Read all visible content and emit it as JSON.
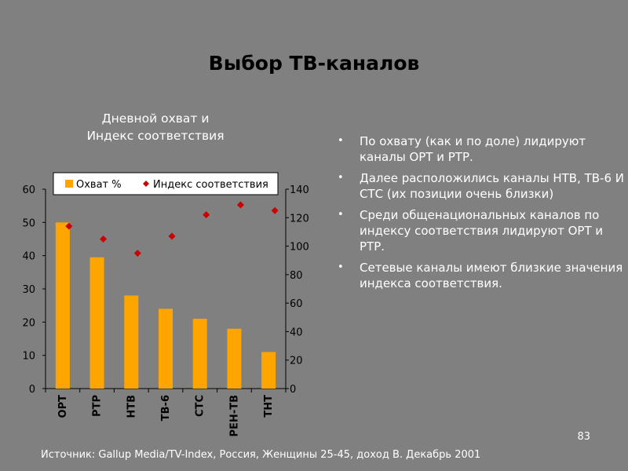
{
  "slide": {
    "title": "Выбор ТВ-каналов",
    "chart_heading_line1": "Дневной охват и",
    "chart_heading_line2": "Индекс соответствия",
    "bullets": [
      "По охвату (как и по доле) лидируют каналы ОРТ и РТР.",
      "Далее расположились каналы НТВ, ТВ-6 И СТС  (их позиции очень близки)",
      "Среди общенациональных каналов по индексу соответствия лидируют ОРТ и РТР.",
      "Сетевые каналы имеют близкие значения индекса соответствия."
    ],
    "page_number": "83",
    "source": "Источник: Gallup Media/TV-Index, Россия, Женщины 25-45, доход В. Декабрь  2001"
  },
  "chart_data": {
    "type": "bar",
    "categories": [
      "ОРТ",
      "РТР",
      "НТВ",
      "ТВ-6",
      "СТС",
      "РЕН-ТВ",
      "ТНТ"
    ],
    "series": [
      {
        "name": "Охват %",
        "type": "bar",
        "axis": "left",
        "values": [
          50,
          39.5,
          28,
          24,
          21,
          18,
          11
        ]
      },
      {
        "name": "Индекс соответствия",
        "type": "scatter",
        "axis": "right",
        "values": [
          114,
          105,
          95,
          107,
          122,
          129,
          125
        ]
      }
    ],
    "y_left": {
      "min": 0,
      "max": 60,
      "ticks": [
        0,
        10,
        20,
        30,
        40,
        50,
        60
      ]
    },
    "y_right": {
      "min": 0,
      "max": 140,
      "ticks": [
        0,
        20,
        40,
        60,
        80,
        100,
        120,
        140
      ]
    },
    "legend_position": "top",
    "colors": {
      "bar": "#FFA500",
      "marker": "#CC0000",
      "plot_bg": "#808080"
    }
  }
}
